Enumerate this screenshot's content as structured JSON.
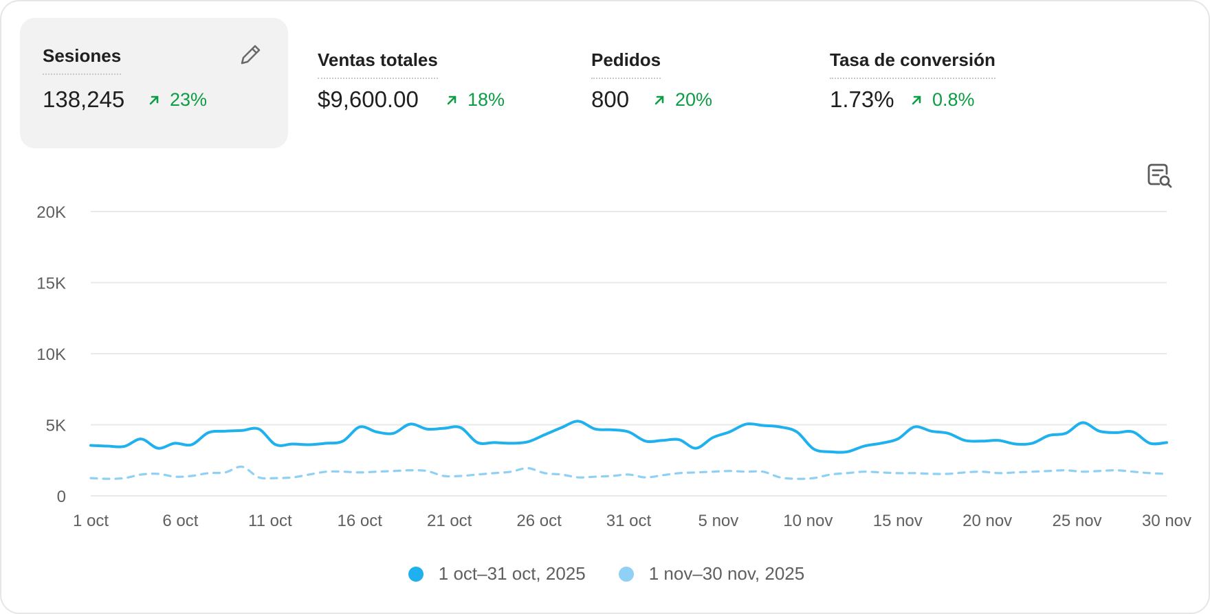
{
  "metrics": [
    {
      "title": "Sesiones",
      "value": "138,245",
      "change": "23%"
    },
    {
      "title": "Ventas totales",
      "value": "$9,600.00",
      "change": "18%"
    },
    {
      "title": "Pedidos",
      "value": "800",
      "change": "20%"
    },
    {
      "title": "Tasa de conversión",
      "value": "1.73%",
      "change": "0.8%"
    }
  ],
  "icons": {
    "edit": "pencil-icon",
    "report": "report-search-icon",
    "trend": "arrow-up-right-icon"
  },
  "colors": {
    "primary_series": "#1fb0ee",
    "comparison_series": "#8fd0f4",
    "positive_change": "#0b9d43"
  },
  "chart_data": {
    "type": "line",
    "title": "",
    "xlabel": "",
    "ylabel": "",
    "ylim": [
      0,
      20000
    ],
    "yticks": [
      "0",
      "5K",
      "10K",
      "15K",
      "20K"
    ],
    "xticks": [
      "1 oct",
      "6 oct",
      "11 oct",
      "16 oct",
      "21 oct",
      "26 oct",
      "31 oct",
      "5 nov",
      "10 nov",
      "15 nov",
      "20 nov",
      "25 nov",
      "30 nov"
    ],
    "grid": true,
    "legend_position": "bottom",
    "series": [
      {
        "name": "1 oct–31 oct, 2025",
        "style": "solid",
        "values": [
          3550,
          3500,
          3480,
          4000,
          3350,
          3700,
          3600,
          4450,
          4550,
          4600,
          4700,
          3600,
          3650,
          3600,
          3700,
          3850,
          4850,
          4500,
          4400,
          5050,
          4700,
          4750,
          4800,
          3750,
          3750,
          3700,
          3800,
          4300,
          4800,
          5250,
          4700,
          4650,
          4500,
          3850,
          3900,
          3950,
          3350,
          4100,
          4500,
          5050,
          4950,
          4850,
          4500,
          3300,
          3100,
          3100,
          3500,
          3700,
          4000,
          4850,
          4550,
          4400,
          3900,
          3850,
          3900,
          3650,
          3700,
          4250,
          4400,
          5150,
          4550,
          4450,
          4500,
          3700,
          3750
        ]
      },
      {
        "name": "1 nov–30 nov, 2025",
        "style": "dashed",
        "values": [
          1250,
          1200,
          1250,
          1500,
          1550,
          1350,
          1400,
          1600,
          1650,
          2050,
          1300,
          1250,
          1300,
          1500,
          1700,
          1700,
          1650,
          1700,
          1750,
          1800,
          1750,
          1400,
          1400,
          1500,
          1600,
          1700,
          1950,
          1600,
          1500,
          1300,
          1350,
          1400,
          1500,
          1300,
          1450,
          1600,
          1650,
          1700,
          1750,
          1700,
          1700,
          1300,
          1200,
          1250,
          1500,
          1600,
          1700,
          1650,
          1600,
          1600,
          1550,
          1550,
          1650,
          1700,
          1600,
          1650,
          1700,
          1750,
          1800,
          1700,
          1750,
          1800,
          1700,
          1600,
          1550
        ]
      }
    ]
  }
}
